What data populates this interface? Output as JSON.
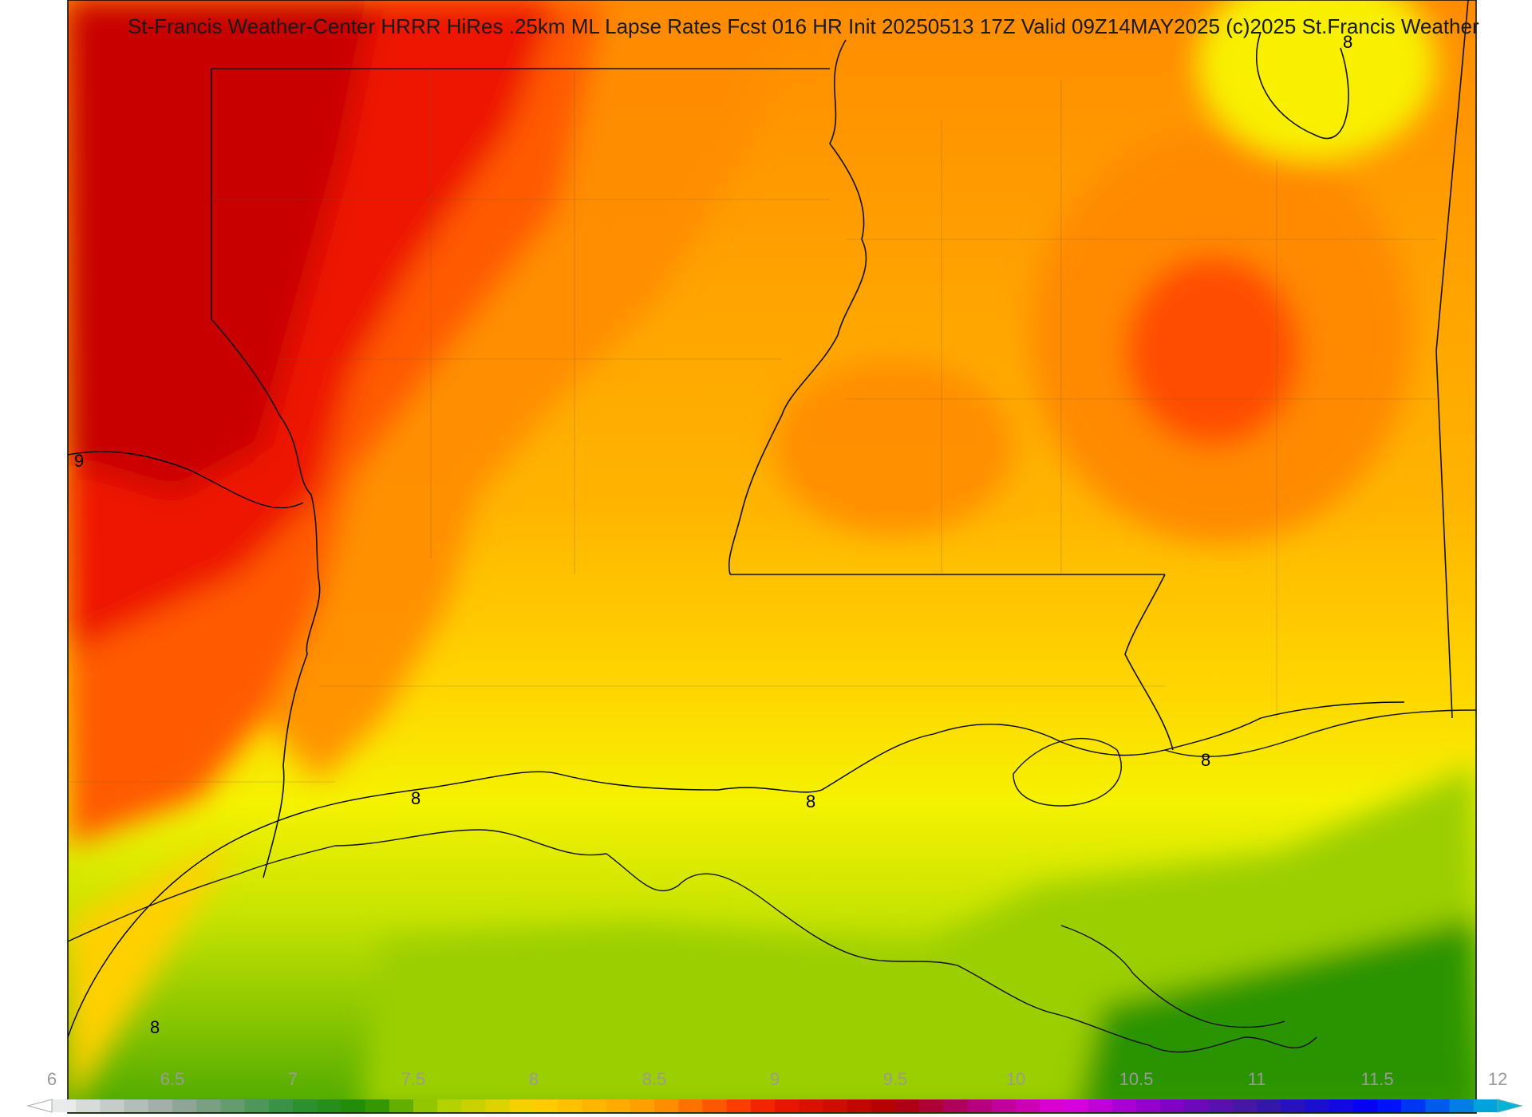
{
  "map": {
    "title": "St-Francis Weather-Center HRRR HiRes .25km ML Lapse Rates  Fcst 016 HR Init 20250513 17Z  Valid 09Z14MAY2025    (c)2025 St.Francis Weather",
    "contour_labels": [
      "9",
      "8",
      "8",
      "8",
      "8",
      "8",
      "8"
    ],
    "colorbar": {
      "ticks": [
        "6",
        "6.5",
        "7",
        "7.5",
        "8",
        "8.5",
        "9",
        "9.5",
        "10",
        "10.5",
        "11",
        "11.5",
        "12"
      ],
      "min": 6,
      "max": 12,
      "step": 0.1
    },
    "colors": {
      "deep_red": "#c80000",
      "red": "#ee1a00",
      "red_orange": "#ff4500",
      "orange": "#ff8a00",
      "light_orange": "#ffb000",
      "gold": "#ffd200",
      "yellow": "#f5f500",
      "yellow_green": "#c8e600",
      "green": "#7fbf00",
      "dark_green": "#1e8c00"
    }
  }
}
